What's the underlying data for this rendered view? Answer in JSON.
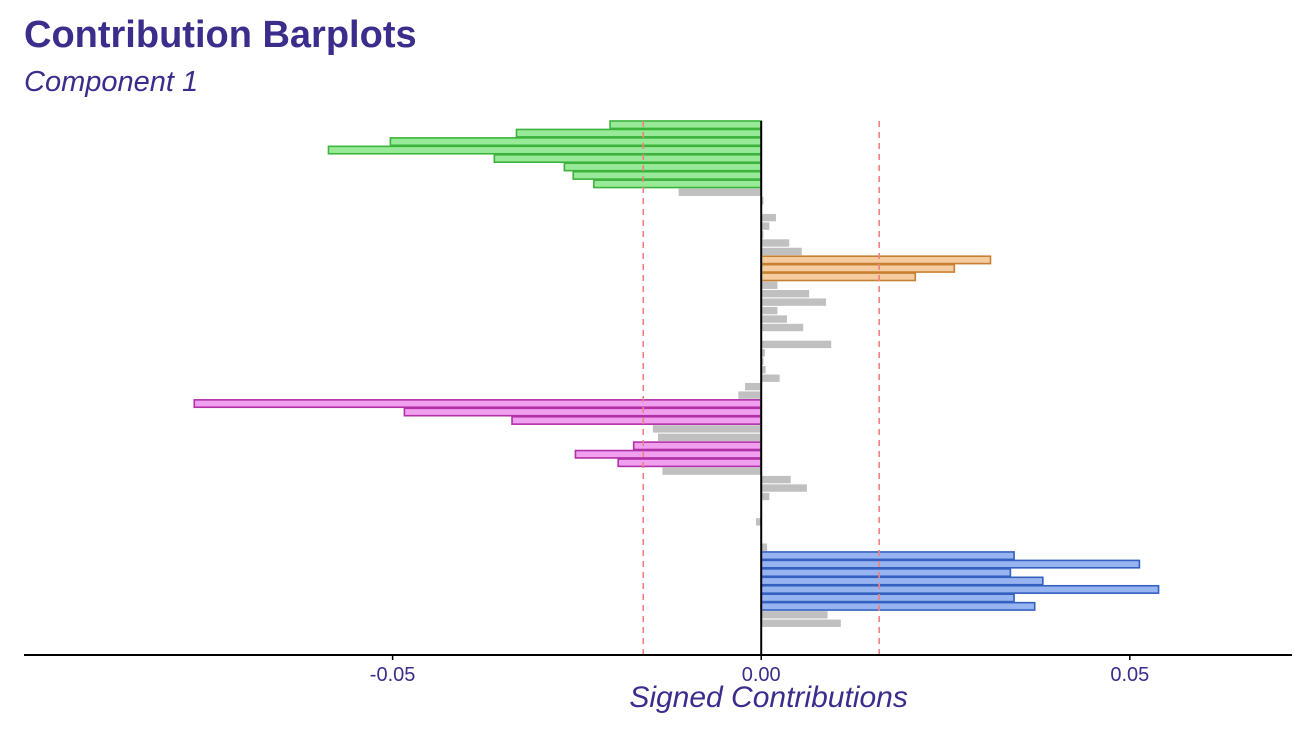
{
  "title": "Contribution Barplots",
  "subtitle": "Component 1",
  "colors": {
    "title": "#3a2d8c",
    "threshold_line": "#f08080",
    "not_significant": "#c0c0c0",
    "group_green": {
      "fill": "#98ea98",
      "stroke": "#3cb43c"
    },
    "group_orange": {
      "fill": "#f4cca0",
      "stroke": "#c88030"
    },
    "group_pink": {
      "fill": "#f0a0ee",
      "stroke": "#b030a8"
    },
    "group_blue": {
      "fill": "#98b4f0",
      "stroke": "#3460c0"
    }
  },
  "chart_data": {
    "type": "bar",
    "orientation": "horizontal",
    "xlabel": "Signed Contributions",
    "xlim": [
      -0.1,
      0.072
    ],
    "xticks": [
      -0.05,
      0.0,
      0.05
    ],
    "xtick_labels": [
      "-0.05",
      "0.00",
      "0.05"
    ],
    "threshold": 0.016,
    "grid": false,
    "values": [
      -0.0205,
      -0.0332,
      -0.0503,
      -0.0587,
      -0.0362,
      -0.0267,
      -0.0255,
      -0.0227,
      -0.0112,
      0.0003,
      0.0001,
      0.002,
      0.0011,
      0.0003,
      0.0038,
      0.0055,
      0.0311,
      0.0262,
      0.0209,
      0.0022,
      0.0065,
      0.0088,
      0.0022,
      0.0035,
      0.0057,
      0.0001,
      0.0095,
      0.0005,
      0.0003,
      0.0006,
      0.0025,
      -0.0022,
      -0.0031,
      -0.0769,
      -0.0484,
      -0.0338,
      -0.0147,
      -0.014,
      -0.0173,
      -0.0252,
      -0.0194,
      -0.0134,
      0.004,
      0.0062,
      0.0011,
      0.0001,
      0.0001,
      -0.0007,
      0.0001,
      0.0001,
      0.0008,
      0.0343,
      0.0513,
      0.0338,
      0.0382,
      0.0539,
      0.0343,
      0.0371,
      0.009,
      0.0108
    ],
    "groups": [
      "green",
      "green",
      "green",
      "green",
      "green",
      "green",
      "green",
      "green",
      "ns",
      "ns",
      "ns",
      "ns",
      "ns",
      "ns",
      "ns",
      "ns",
      "orange",
      "orange",
      "orange",
      "ns",
      "ns",
      "ns",
      "ns",
      "ns",
      "ns",
      "ns",
      "ns",
      "ns",
      "ns",
      "ns",
      "ns",
      "ns",
      "ns",
      "pink",
      "pink",
      "pink",
      "ns",
      "ns",
      "pink",
      "pink",
      "pink",
      "ns",
      "ns",
      "ns",
      "ns",
      "ns",
      "ns",
      "ns",
      "ns",
      "ns",
      "ns",
      "blue",
      "blue",
      "blue",
      "blue",
      "blue",
      "blue",
      "blue",
      "ns",
      "ns"
    ]
  }
}
